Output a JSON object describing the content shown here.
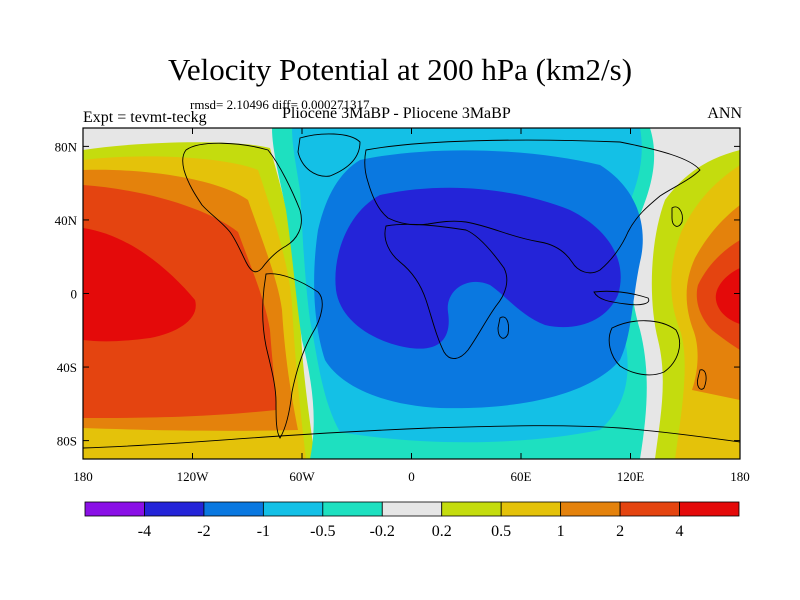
{
  "chart_data": {
    "type": "contour-map",
    "title": "Velocity Potential at 200 hPa (km2/s)",
    "subtitle": "rmsd= 2.10496 diff= 0.000271317",
    "left_string": "Expt = tevmt-teckg",
    "center_string": "Pliocene   3MaBP - Pliocene   3MaBP",
    "right_string": "ANN",
    "lon_range": [
      -180,
      180
    ],
    "lat_range": [
      -90,
      90
    ],
    "x_ticks": [
      "180",
      "120W",
      "60W",
      "0",
      "60E",
      "120E",
      "180"
    ],
    "y_ticks": [
      "80N",
      "40N",
      "0",
      "40S",
      "80S"
    ],
    "contour_levels": [
      "-4",
      "-2",
      "-1",
      "-0.5",
      "-0.2",
      "0.2",
      "0.5",
      "1",
      "2",
      "4"
    ],
    "colors": [
      "#8a10e6",
      "#2424d8",
      "#0a78e0",
      "#14c0e6",
      "#1ee0c0",
      "#e6e6e6",
      "#c4dc0e",
      "#e4c20a",
      "#e4820c",
      "#e44410",
      "#e40a0a"
    ],
    "pattern": "Negative centre over Africa/Indian Ocean (min below -2), positive over central/east Pacific (max above 4); zero line near 80W and 150E"
  }
}
